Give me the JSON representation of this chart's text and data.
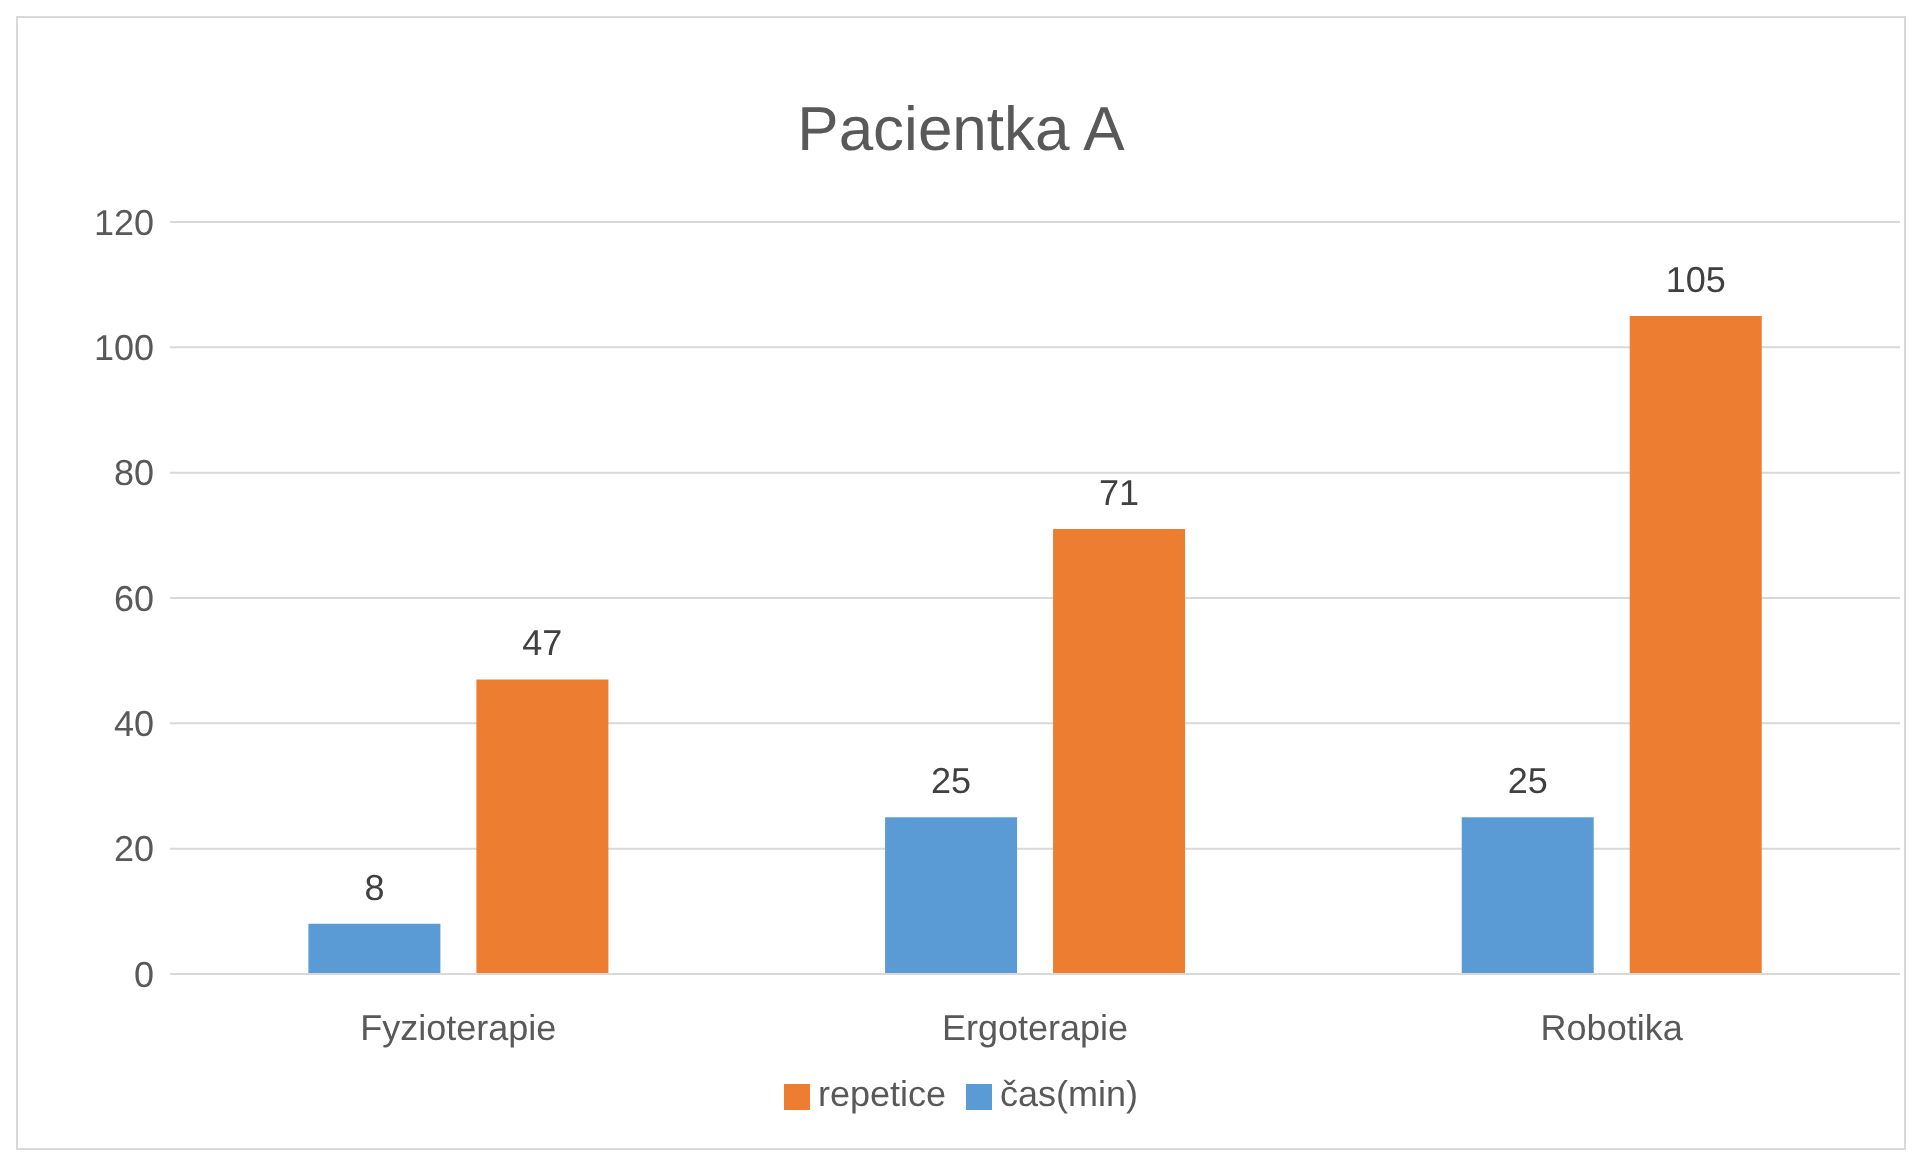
{
  "chart_data": {
    "type": "bar",
    "title": "Pacientka A",
    "categories": [
      "Fyzioterapie",
      "Ergoterapie",
      "Robotika"
    ],
    "series": [
      {
        "name": "čas(min)",
        "color": "#5b9bd5",
        "values": [
          8,
          25,
          25
        ]
      },
      {
        "name": "repetice",
        "color": "#ed7d31",
        "values": [
          47,
          71,
          105
        ]
      }
    ],
    "ylim": [
      0,
      120
    ],
    "yticks": [
      0,
      20,
      40,
      60,
      80,
      100,
      120
    ],
    "grid": "y",
    "legend": "bottom",
    "data_labels": true
  }
}
